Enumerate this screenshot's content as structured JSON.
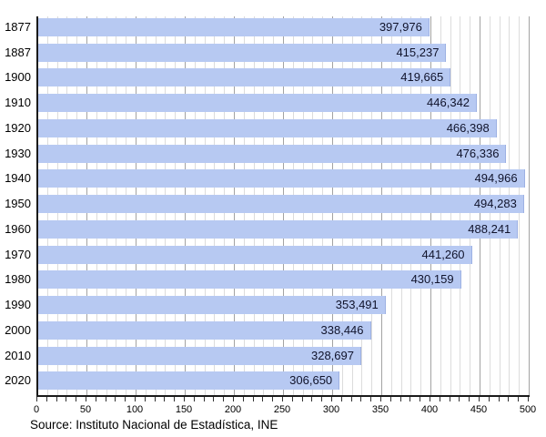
{
  "source_note": "Source: Instituto Nacional de Estadística, INE",
  "colors": {
    "bar_fill": "#b7c9f2",
    "bar_edge": "#9db1e3",
    "minor_gridline": "#dcdcdc",
    "major_gridline": "#a3a3a3",
    "axis": "#1a1a1a",
    "value_text": "#10132b",
    "background": "#ffffff"
  },
  "chart_data": {
    "type": "bar",
    "orientation": "horizontal",
    "title": "",
    "xlabel": "",
    "ylabel": "",
    "categories": [
      "1877",
      "1887",
      "1900",
      "1910",
      "1920",
      "1930",
      "1940",
      "1950",
      "1960",
      "1970",
      "1980",
      "1990",
      "2000",
      "2010",
      "2020"
    ],
    "values": [
      397976,
      415237,
      419665,
      446342,
      466398,
      476336,
      494966,
      494283,
      488241,
      441260,
      430159,
      353491,
      338446,
      328697,
      306650
    ],
    "value_labels": [
      "397,976",
      "415,237",
      "419,665",
      "446,342",
      "466,398",
      "476,336",
      "494,966",
      "494,283",
      "488,241",
      "441,260",
      "430,159",
      "353,491",
      "338,446",
      "328,697",
      "306,650"
    ],
    "axis_unit": "thousands",
    "xlim": [
      0,
      500
    ],
    "x_major_step": 50,
    "x_minor_step": 10,
    "x_tick_labels": [
      "0",
      "50",
      "100",
      "150",
      "200",
      "250",
      "300",
      "350",
      "400",
      "450",
      "500"
    ],
    "grid": "vertical",
    "legend_position": "none"
  }
}
